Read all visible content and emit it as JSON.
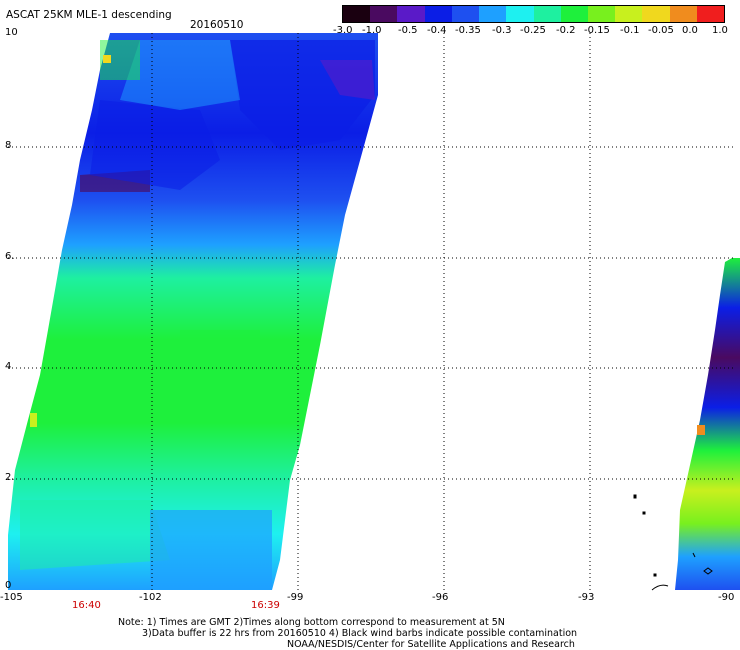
{
  "header": {
    "title": "ASCAT 25KM MLE-1 descending",
    "date": "20160510"
  },
  "colorbar": {
    "labels": [
      "-3.0",
      "-1.0",
      "-0.5",
      "-0.4",
      "-0.35",
      "-0.3",
      "-0.25",
      "-0.2",
      "-0.15",
      "-0.1",
      "-0.05",
      "0.0",
      "1.0"
    ],
    "colors": [
      "#1a0010",
      "#4a0a60",
      "#5a1ac8",
      "#0b1ee6",
      "#1e50f0",
      "#1ea0ff",
      "#1ef0f0",
      "#1ef0a0",
      "#1ef03c",
      "#78f01e",
      "#c8f01e",
      "#f0d81e",
      "#f08c1e",
      "#f01e1e"
    ]
  },
  "map": {
    "x_axis_labels": [
      "-105",
      "-102",
      "-99",
      "-96",
      "-93",
      "-90"
    ],
    "y_axis_labels": [
      "0",
      "2.",
      "4",
      "6.",
      "8",
      "10"
    ],
    "lon_range": [
      -105,
      -90
    ],
    "lat_range": [
      0,
      10
    ],
    "pass_times": [
      "16:40",
      "16:39"
    ]
  },
  "notes": {
    "line1": "Note: 1) Times are GMT 2)Times along bottom correspond to measurement at 5N",
    "line2": "3)Data buffer is 22 hrs from 20160510 4) Black wind barbs indicate possible contamination",
    "line3": "NOAA/NESDIS/Center for Satellite Applications and Research"
  }
}
